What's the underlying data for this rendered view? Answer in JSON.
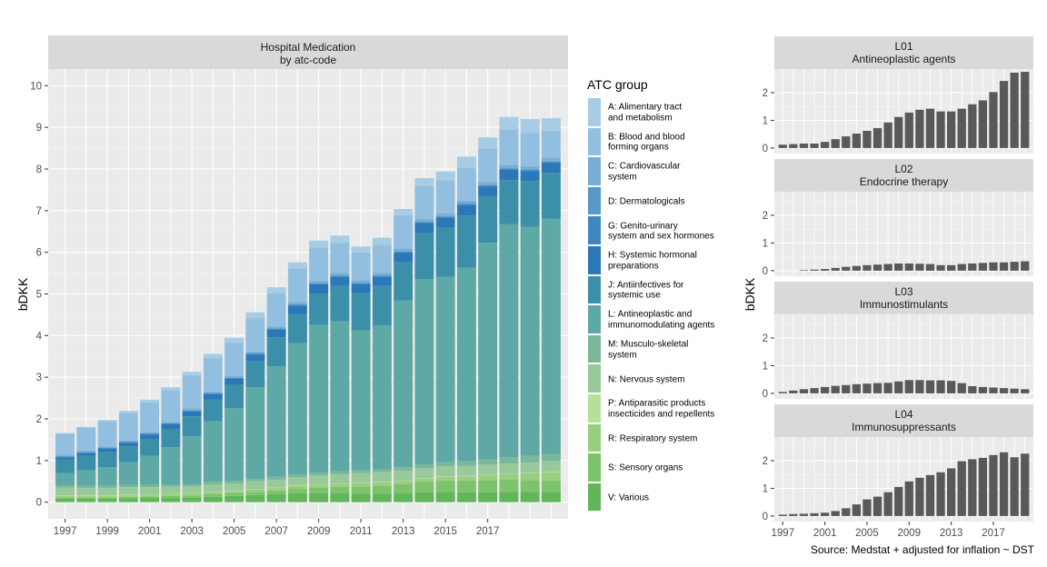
{
  "main_chart": {
    "title": "Hospital Medication",
    "subtitle": "by atc-code",
    "ylabel": "bDKK",
    "legend_title": "ATC group"
  },
  "right_panels": {
    "ylabel": "bDKK"
  },
  "source": "Source: Medstat + adjusted for inflation ~ DST",
  "chart_data": [
    {
      "type": "bar",
      "stacked": true,
      "title": "Hospital Medication\nby atc-code",
      "xlabel": "",
      "ylabel": "bDKK",
      "ylim": [
        -0.4,
        10.4
      ],
      "yticks": [
        0,
        1,
        2,
        3,
        4,
        5,
        6,
        7,
        8,
        9,
        10
      ],
      "x": [
        1997,
        1998,
        1999,
        2000,
        2001,
        2002,
        2003,
        2004,
        2005,
        2006,
        2007,
        2008,
        2009,
        2010,
        2011,
        2012,
        2013,
        2014,
        2015,
        2016,
        2017,
        2018,
        2019,
        2020
      ],
      "xtick_labels": [
        "1997",
        "1999",
        "2001",
        "2003",
        "2005",
        "2007",
        "2009",
        "2011",
        "2013",
        "2015",
        "2017"
      ],
      "legend_position": "right",
      "grid": true,
      "series": [
        {
          "name": "V: Various",
          "color": "#63b55a",
          "values": [
            0.08,
            0.08,
            0.08,
            0.09,
            0.1,
            0.1,
            0.11,
            0.13,
            0.15,
            0.17,
            0.19,
            0.21,
            0.22,
            0.22,
            0.2,
            0.2,
            0.21,
            0.24,
            0.25,
            0.24,
            0.24,
            0.25,
            0.25,
            0.25
          ]
        },
        {
          "name": "S: Sensory organs",
          "color": "#7cc36b",
          "values": [
            0.03,
            0.03,
            0.03,
            0.04,
            0.04,
            0.05,
            0.05,
            0.06,
            0.07,
            0.08,
            0.09,
            0.11,
            0.13,
            0.15,
            0.18,
            0.2,
            0.22,
            0.25,
            0.27,
            0.28,
            0.29,
            0.29,
            0.28,
            0.27
          ]
        },
        {
          "name": "R: Respiratory system",
          "color": "#98cf7f",
          "values": [
            0.04,
            0.04,
            0.04,
            0.04,
            0.04,
            0.05,
            0.05,
            0.05,
            0.05,
            0.06,
            0.06,
            0.07,
            0.07,
            0.07,
            0.08,
            0.08,
            0.08,
            0.08,
            0.09,
            0.1,
            0.12,
            0.14,
            0.17,
            0.2
          ]
        },
        {
          "name": "P: Antiparasitic products\ninsecticides and repellents",
          "color": "#b5e09a",
          "values": [
            0.01,
            0.01,
            0.01,
            0.01,
            0.01,
            0.01,
            0.01,
            0.01,
            0.01,
            0.01,
            0.01,
            0.01,
            0.01,
            0.01,
            0.01,
            0.01,
            0.01,
            0.01,
            0.01,
            0.01,
            0.01,
            0.01,
            0.01,
            0.01
          ]
        },
        {
          "name": "N: Nervous system",
          "color": "#98c99a",
          "values": [
            0.19,
            0.18,
            0.18,
            0.18,
            0.17,
            0.16,
            0.16,
            0.18,
            0.17,
            0.18,
            0.19,
            0.2,
            0.21,
            0.22,
            0.23,
            0.23,
            0.24,
            0.24,
            0.24,
            0.24,
            0.24,
            0.24,
            0.24,
            0.25
          ]
        },
        {
          "name": "M: Musculo-skeletal\nsystem",
          "color": "#7bb79a",
          "values": [
            0.05,
            0.05,
            0.05,
            0.05,
            0.05,
            0.05,
            0.05,
            0.06,
            0.06,
            0.06,
            0.07,
            0.07,
            0.07,
            0.07,
            0.07,
            0.07,
            0.08,
            0.09,
            0.1,
            0.11,
            0.13,
            0.15,
            0.16,
            0.18
          ]
        },
        {
          "name": "L: Antineoplastic and\nimmunomodulating agents",
          "color": "#5ea8a5",
          "values": [
            0.3,
            0.38,
            0.45,
            0.55,
            0.7,
            0.9,
            1.15,
            1.45,
            1.75,
            2.2,
            2.65,
            3.15,
            3.55,
            3.6,
            3.35,
            3.45,
            4.0,
            4.45,
            4.45,
            4.65,
            5.2,
            5.6,
            5.5,
            5.65
          ]
        },
        {
          "name": "J: Antiinfectives for\nsystemic use",
          "color": "#3c8fa8",
          "values": [
            0.32,
            0.34,
            0.36,
            0.38,
            0.41,
            0.44,
            0.48,
            0.52,
            0.56,
            0.62,
            0.7,
            0.7,
            0.75,
            0.85,
            0.9,
            0.95,
            0.92,
            1.1,
            1.18,
            1.25,
            1.1,
            1.05,
            1.1,
            1.1
          ]
        },
        {
          "name": "H: Systemic hormonal\npreparations",
          "color": "#2b78b8",
          "values": [
            0.06,
            0.07,
            0.08,
            0.09,
            0.1,
            0.11,
            0.12,
            0.13,
            0.14,
            0.16,
            0.18,
            0.2,
            0.22,
            0.22,
            0.21,
            0.22,
            0.23,
            0.24,
            0.24,
            0.25,
            0.25,
            0.25,
            0.24,
            0.24
          ]
        },
        {
          "name": "G: Genito-urinary\nsystem and sex hormones",
          "color": "#3f87c0",
          "values": [
            0.02,
            0.02,
            0.02,
            0.02,
            0.02,
            0.02,
            0.02,
            0.02,
            0.02,
            0.02,
            0.02,
            0.02,
            0.02,
            0.03,
            0.03,
            0.03,
            0.03,
            0.03,
            0.03,
            0.03,
            0.03,
            0.03,
            0.03,
            0.03
          ]
        },
        {
          "name": "D: Dermatologicals",
          "color": "#5799c9",
          "values": [
            0.01,
            0.01,
            0.01,
            0.01,
            0.01,
            0.01,
            0.01,
            0.01,
            0.01,
            0.01,
            0.01,
            0.01,
            0.01,
            0.01,
            0.01,
            0.01,
            0.01,
            0.01,
            0.01,
            0.01,
            0.01,
            0.01,
            0.01,
            0.01
          ]
        },
        {
          "name": "C: Cardiovascular\nsystem",
          "color": "#78add6",
          "values": [
            0.03,
            0.03,
            0.03,
            0.03,
            0.03,
            0.03,
            0.04,
            0.04,
            0.04,
            0.05,
            0.05,
            0.06,
            0.06,
            0.06,
            0.06,
            0.06,
            0.06,
            0.06,
            0.06,
            0.07,
            0.07,
            0.08,
            0.08,
            0.08
          ]
        },
        {
          "name": "B: Blood and blood\nforming organs",
          "color": "#92bfe0",
          "values": [
            0.5,
            0.55,
            0.6,
            0.65,
            0.72,
            0.76,
            0.8,
            0.8,
            0.8,
            0.8,
            0.8,
            0.8,
            0.8,
            0.72,
            0.67,
            0.67,
            0.8,
            0.8,
            0.8,
            0.8,
            0.8,
            0.85,
            0.8,
            0.65
          ]
        },
        {
          "name": "A: Alimentary tract\nand metabolism",
          "color": "#a7cde5",
          "values": [
            0.02,
            0.02,
            0.04,
            0.05,
            0.06,
            0.07,
            0.08,
            0.1,
            0.12,
            0.14,
            0.14,
            0.15,
            0.16,
            0.17,
            0.14,
            0.17,
            0.15,
            0.18,
            0.21,
            0.26,
            0.27,
            0.3,
            0.33,
            0.3
          ]
        }
      ]
    },
    {
      "type": "bar",
      "title": "L01\nAntineoplastic agents",
      "ylim": [
        -0.2,
        2.85
      ],
      "yticks": [
        0,
        1,
        2
      ],
      "x": [
        1997,
        1998,
        1999,
        2000,
        2001,
        2002,
        2003,
        2004,
        2005,
        2006,
        2007,
        2008,
        2009,
        2010,
        2011,
        2012,
        2013,
        2014,
        2015,
        2016,
        2017,
        2018,
        2019,
        2020
      ],
      "values": [
        0.12,
        0.14,
        0.16,
        0.16,
        0.22,
        0.32,
        0.42,
        0.52,
        0.62,
        0.72,
        0.92,
        1.12,
        1.28,
        1.38,
        1.42,
        1.32,
        1.32,
        1.42,
        1.58,
        1.72,
        2.02,
        2.42,
        2.72,
        2.75
      ]
    },
    {
      "type": "bar",
      "title": "L02\nEndocrine therapy",
      "ylim": [
        -0.2,
        2.85
      ],
      "yticks": [
        0,
        1,
        2
      ],
      "x": [
        1997,
        1998,
        1999,
        2000,
        2001,
        2002,
        2003,
        2004,
        2005,
        2006,
        2007,
        2008,
        2009,
        2010,
        2011,
        2012,
        2013,
        2014,
        2015,
        2016,
        2017,
        2018,
        2019,
        2020
      ],
      "values": [
        0,
        0,
        0.02,
        0.04,
        0.06,
        0.1,
        0.14,
        0.17,
        0.2,
        0.22,
        0.24,
        0.26,
        0.26,
        0.25,
        0.24,
        0.2,
        0.2,
        0.24,
        0.26,
        0.28,
        0.3,
        0.3,
        0.32,
        0.34
      ]
    },
    {
      "type": "bar",
      "title": "L03\nImmunostimulants",
      "ylim": [
        -0.2,
        2.85
      ],
      "yticks": [
        0,
        1,
        2
      ],
      "x": [
        1997,
        1998,
        1999,
        2000,
        2001,
        2002,
        2003,
        2004,
        2005,
        2006,
        2007,
        2008,
        2009,
        2010,
        2011,
        2012,
        2013,
        2014,
        2015,
        2016,
        2017,
        2018,
        2019,
        2020
      ],
      "values": [
        0.05,
        0.1,
        0.15,
        0.19,
        0.23,
        0.27,
        0.3,
        0.33,
        0.35,
        0.37,
        0.38,
        0.43,
        0.48,
        0.48,
        0.47,
        0.47,
        0.45,
        0.37,
        0.26,
        0.23,
        0.21,
        0.19,
        0.17,
        0.15
      ]
    },
    {
      "type": "bar",
      "title": "L04\nImmunosuppressants",
      "ylim": [
        -0.2,
        2.85
      ],
      "yticks": [
        0,
        1,
        2
      ],
      "x": [
        1997,
        1998,
        1999,
        2000,
        2001,
        2002,
        2003,
        2004,
        2005,
        2006,
        2007,
        2008,
        2009,
        2010,
        2011,
        2012,
        2013,
        2014,
        2015,
        2016,
        2017,
        2018,
        2019,
        2020
      ],
      "xtick_labels": [
        "1997",
        "2001",
        "2005",
        "2009",
        "2013",
        "2017"
      ],
      "values": [
        0.05,
        0.07,
        0.08,
        0.1,
        0.12,
        0.18,
        0.28,
        0.42,
        0.6,
        0.7,
        0.86,
        1.05,
        1.25,
        1.38,
        1.48,
        1.58,
        1.72,
        1.98,
        2.05,
        2.1,
        2.2,
        2.3,
        2.12,
        2.25
      ]
    }
  ]
}
